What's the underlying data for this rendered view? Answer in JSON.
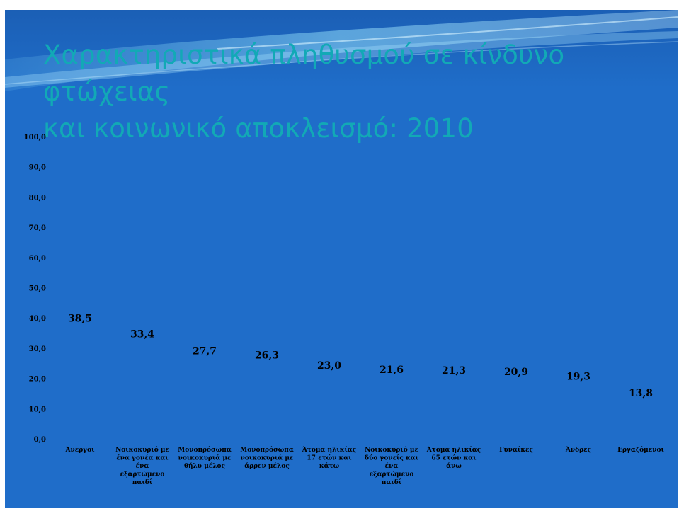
{
  "slide": {
    "title_line1": "Χαρακτηριστικά πληθυσμού σε κίνδυνο φτώχειας",
    "title_line2": "και κοινωνικό αποκλεισμό: 2010"
  },
  "colors": {
    "background": "#1f6dc9",
    "title": "#12a9b6",
    "text": "#000000"
  },
  "chart_data": {
    "type": "bar",
    "title": "",
    "xlabel": "",
    "ylabel": "",
    "ylim": [
      0,
      100
    ],
    "yticks": [
      "0,0",
      "10,0",
      "20,0",
      "30,0",
      "40,0",
      "50,0",
      "60,0",
      "70,0",
      "80,0",
      "90,0",
      "100,0"
    ],
    "grid": false,
    "bars_visible": false,
    "categories": [
      [
        "Άνεργοι"
      ],
      [
        "Νοικοκυριό με",
        "ένα γονέα και",
        "ένα",
        "εξαρτώμενο",
        "παιδί"
      ],
      [
        "Μονοπρόσωπα",
        "νοικοκυριά με",
        "θήλυ μέλος"
      ],
      [
        "Μονοπρόσωπα",
        "νοικοκυριά με",
        "άρρεν μέλος"
      ],
      [
        "Άτομα ηλικίας",
        "17 ετών και",
        "κάτω"
      ],
      [
        "Νοικοκυριό με",
        "δύο γονείς και",
        "ένα",
        "εξαρτώμενο",
        "παιδί"
      ],
      [
        "Άτομα ηλικίας",
        "65 ετών και",
        "άνω"
      ],
      [
        "Γυναίκες"
      ],
      [
        "Άνδρες"
      ],
      [
        "Εργαζόμενοι"
      ]
    ],
    "values": [
      38.5,
      33.4,
      27.7,
      26.3,
      23.0,
      21.6,
      21.3,
      20.9,
      19.3,
      13.8
    ],
    "value_labels": [
      "38,5",
      "33,4",
      "27,7",
      "26,3",
      "23,0",
      "21,6",
      "21,3",
      "20,9",
      "19,3",
      "13,8"
    ]
  }
}
